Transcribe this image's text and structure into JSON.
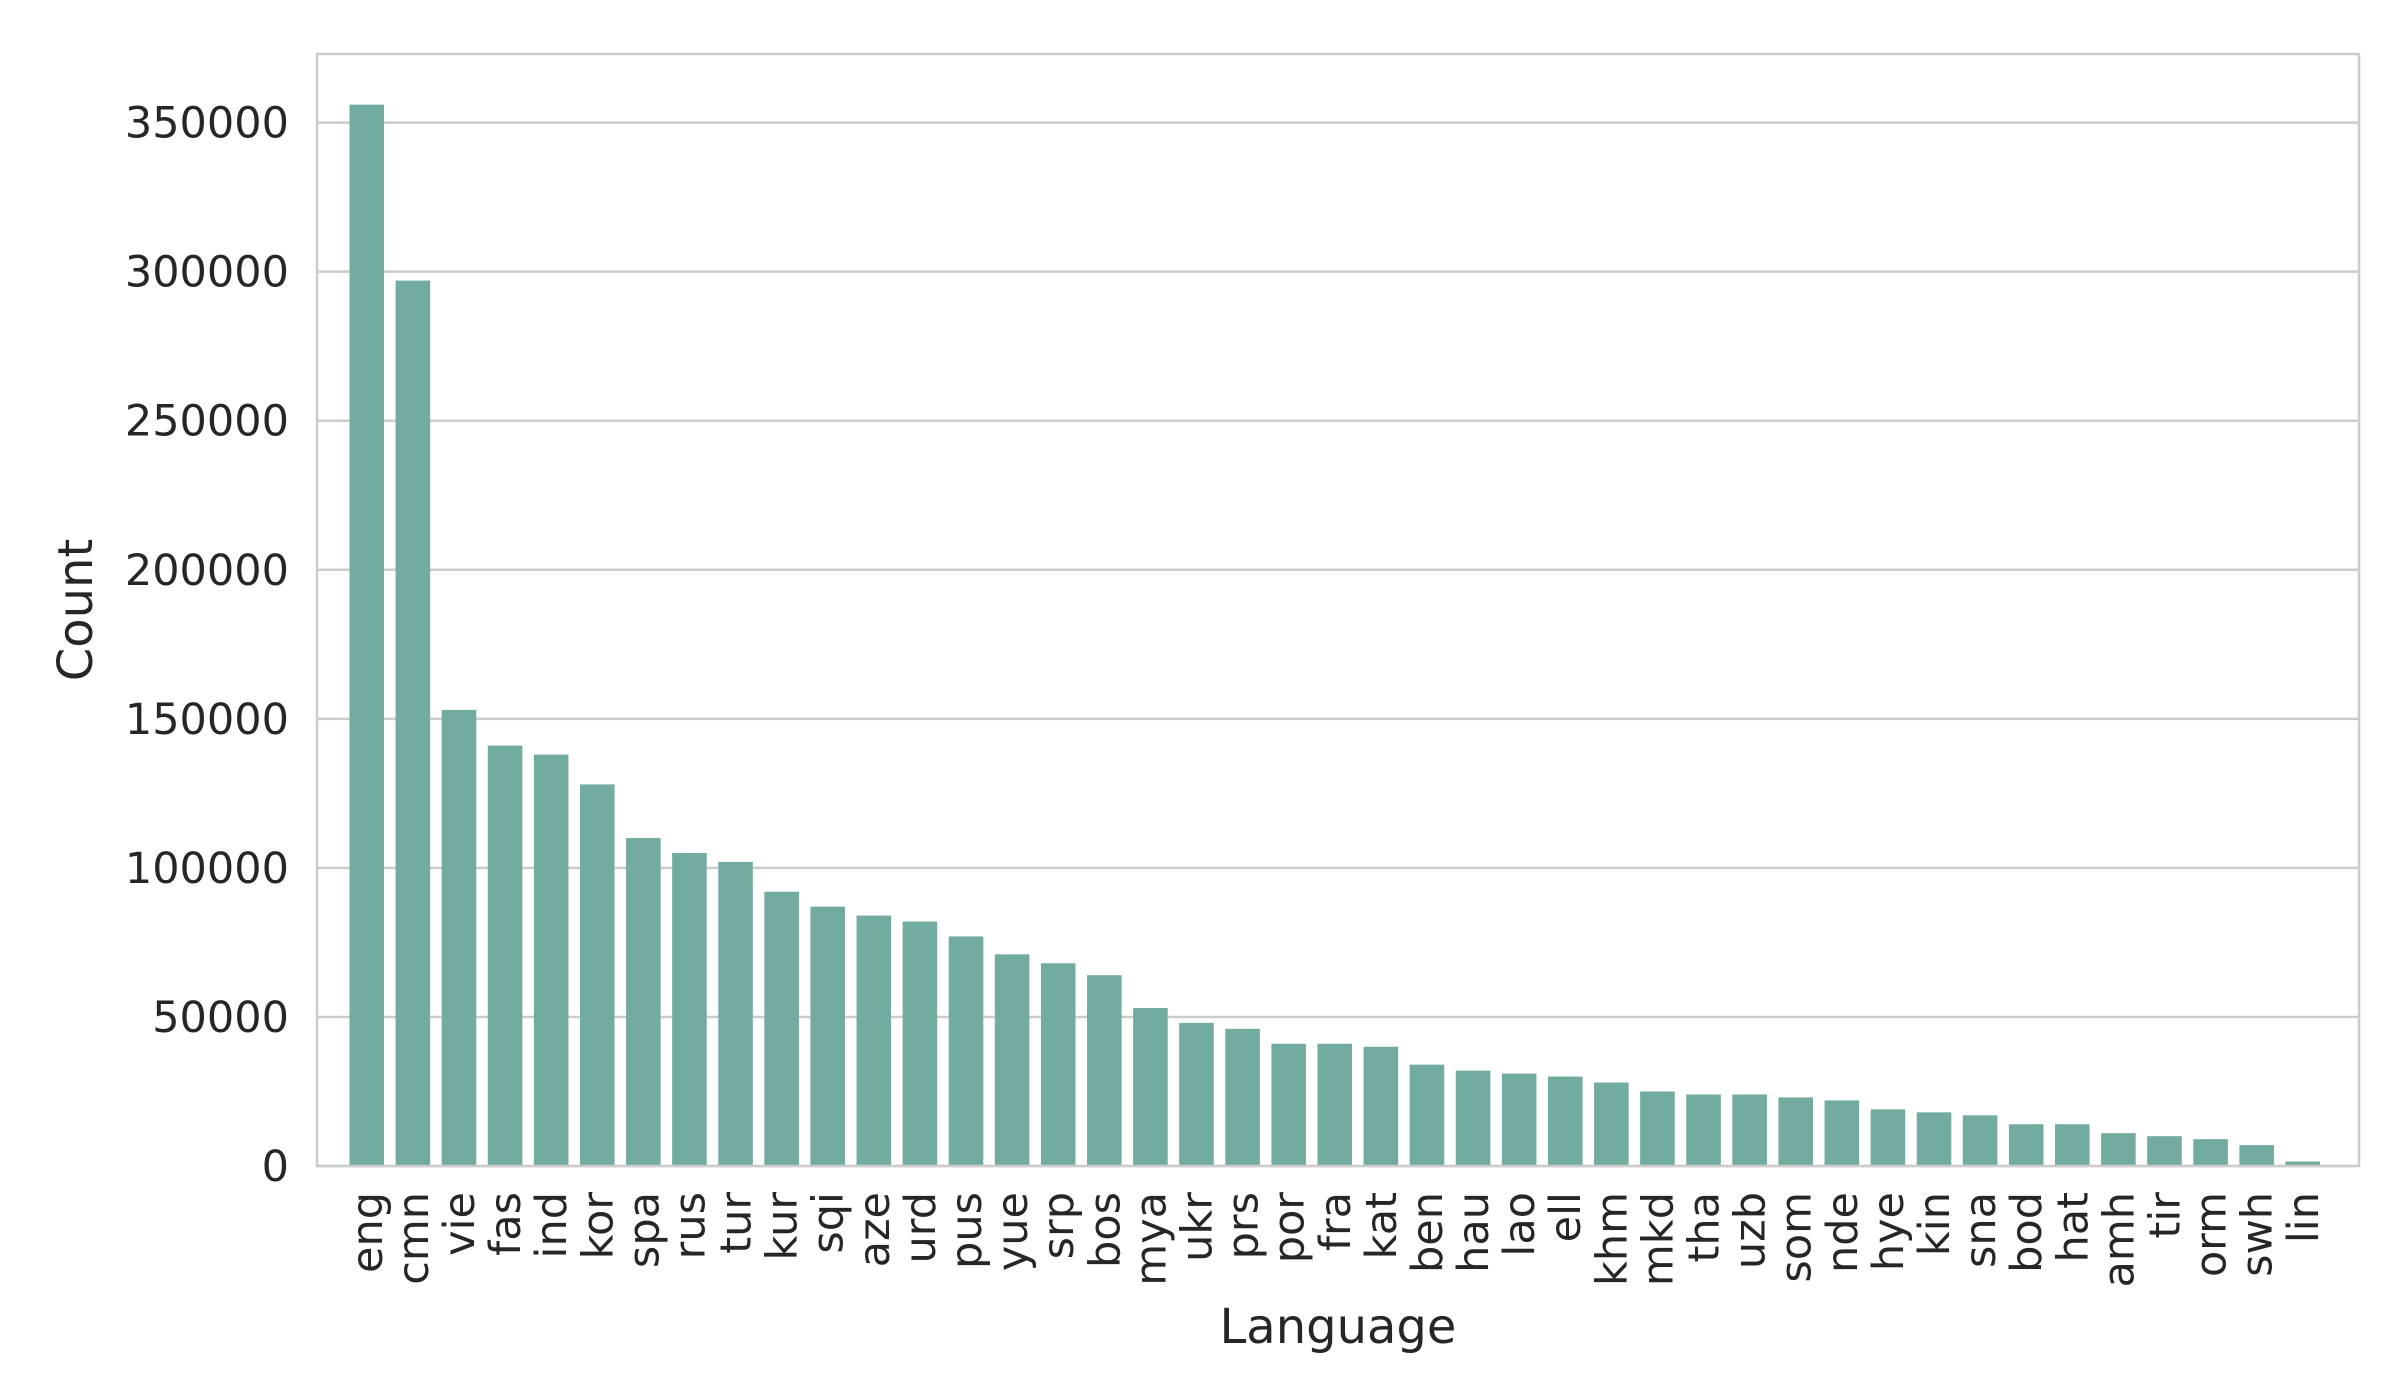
{
  "chart_data": {
    "type": "bar",
    "title": "",
    "xlabel": "Language",
    "ylabel": "Count",
    "ylim": [
      0,
      373000
    ],
    "yticks": [
      0,
      50000,
      100000,
      150000,
      200000,
      250000,
      300000,
      350000
    ],
    "grid": true,
    "bar_color": "#72ab9f",
    "grid_color": "#cccccc",
    "categories": [
      "eng",
      "cmn",
      "vie",
      "fas",
      "ind",
      "kor",
      "spa",
      "rus",
      "tur",
      "kur",
      "sqi",
      "aze",
      "urd",
      "pus",
      "yue",
      "srp",
      "bos",
      "mya",
      "ukr",
      "prs",
      "por",
      "fra",
      "kat",
      "ben",
      "hau",
      "lao",
      "ell",
      "khm",
      "mkd",
      "tha",
      "uzb",
      "som",
      "nde",
      "hye",
      "kin",
      "sna",
      "bod",
      "hat",
      "amh",
      "tir",
      "orm",
      "swh",
      "lin"
    ],
    "values": [
      356000,
      297000,
      153000,
      141000,
      138000,
      128000,
      110000,
      105000,
      102000,
      92000,
      87000,
      84000,
      82000,
      77000,
      71000,
      68000,
      64000,
      53000,
      48000,
      46000,
      41000,
      41000,
      40000,
      34000,
      32000,
      31000,
      30000,
      28000,
      25000,
      24000,
      24000,
      23000,
      22000,
      19000,
      18000,
      17000,
      14000,
      14000,
      11000,
      10000,
      9000,
      7000,
      1500
    ]
  }
}
